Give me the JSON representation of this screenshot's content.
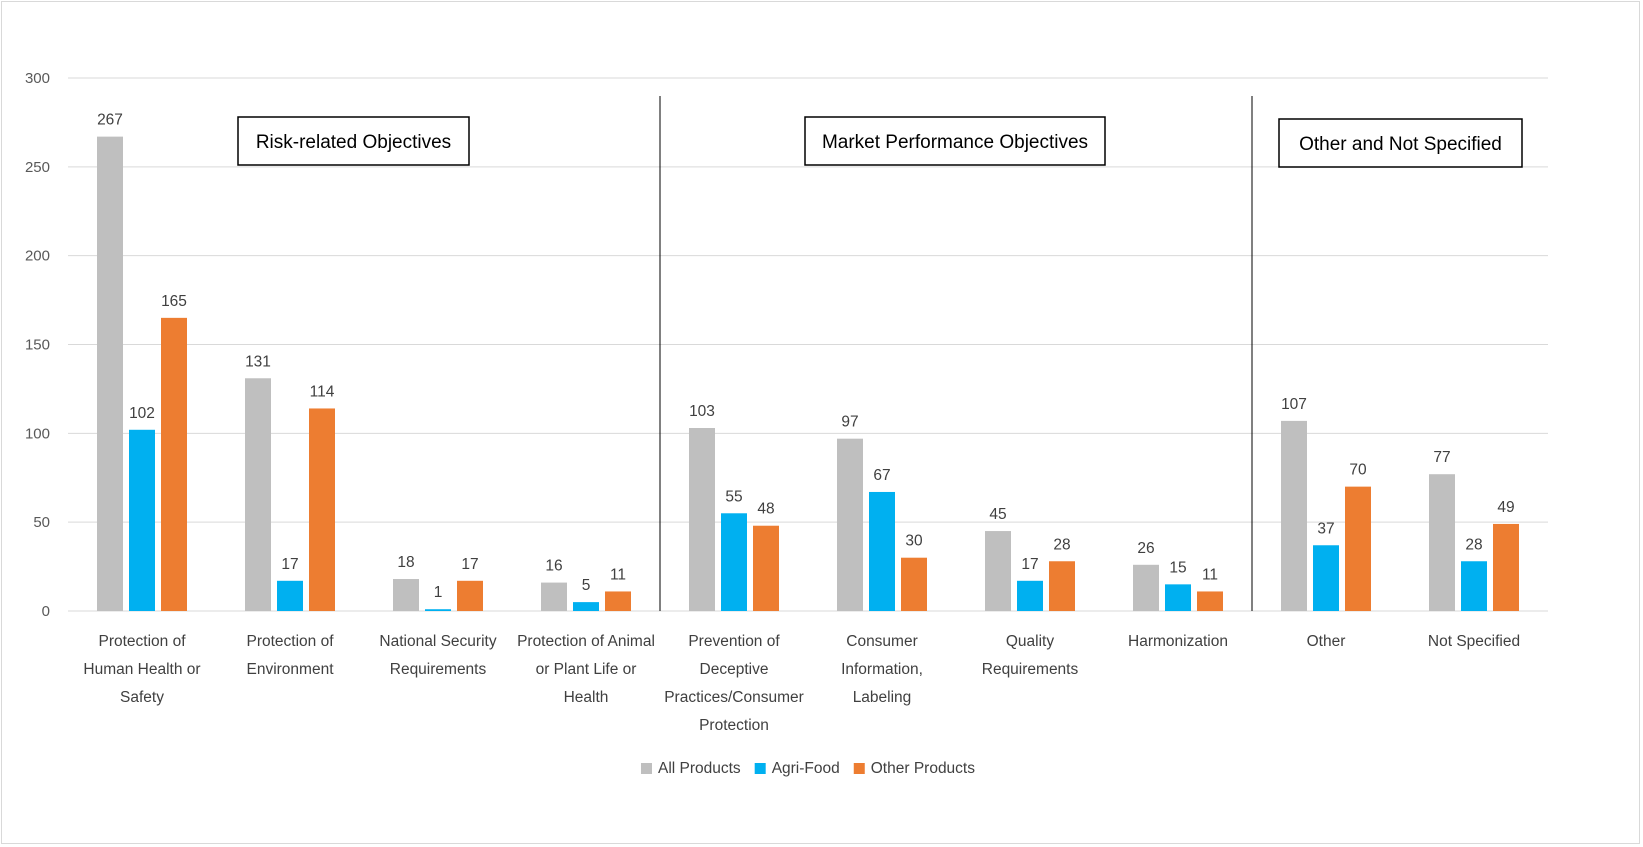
{
  "chart_data": {
    "type": "bar",
    "title": "",
    "xlabel": "",
    "ylabel": "",
    "ylim": [
      0,
      300
    ],
    "yticks": [
      "0",
      "50",
      "100",
      "150",
      "200",
      "250",
      "300"
    ],
    "grid": true,
    "legend_position": "bottom",
    "categories": [
      [
        "Protection of",
        "Human Health or",
        "Safety"
      ],
      [
        "Protection of",
        "Environment"
      ],
      [
        "National Security",
        "Requirements"
      ],
      [
        "Protection of Animal",
        "or Plant Life or",
        "Health"
      ],
      [
        "Prevention of",
        "Deceptive",
        "Practices/Consumer",
        "Protection"
      ],
      [
        "Consumer",
        "Information,",
        "Labeling"
      ],
      [
        "Quality",
        "Requirements"
      ],
      [
        "Harmonization"
      ],
      [
        "Other"
      ],
      [
        "Not Specified"
      ]
    ],
    "series": [
      {
        "name": "All Products",
        "color": "#bfbfbf",
        "values": [
          267,
          131,
          18,
          16,
          103,
          97,
          45,
          26,
          107,
          77
        ]
      },
      {
        "name": "Agri-Food",
        "color": "#00b0f0",
        "values": [
          102,
          17,
          1,
          5,
          55,
          67,
          17,
          15,
          37,
          28
        ]
      },
      {
        "name": "Other Products",
        "color": "#ed7d31",
        "values": [
          165,
          114,
          17,
          11,
          48,
          30,
          28,
          11,
          70,
          49
        ]
      }
    ],
    "groups": [
      {
        "label": "Risk-related Objectives",
        "from": 0,
        "to": 3
      },
      {
        "label": "Market Performance Objectives",
        "from": 4,
        "to": 7
      },
      {
        "label": "Other and Not Specified",
        "from": 8,
        "to": 9
      }
    ]
  }
}
